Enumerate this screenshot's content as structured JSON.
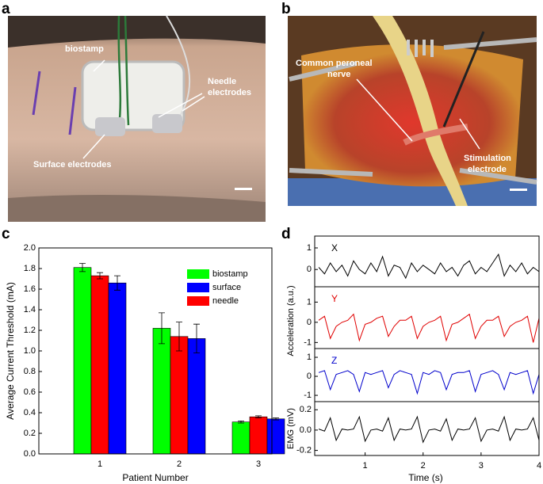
{
  "panel_labels": [
    "a",
    "b",
    "c",
    "d"
  ],
  "photo_a": {
    "labels": {
      "biostamp": "biostamp",
      "needle": [
        "Needle",
        "electrodes"
      ],
      "surface": "Surface electrodes"
    }
  },
  "photo_b": {
    "labels": {
      "nerve": [
        "Common peroneal",
        "nerve"
      ],
      "stim": [
        "Stimulation",
        "electrode"
      ]
    }
  },
  "chart_data": [
    {
      "type": "bar",
      "categories": [
        "1",
        "2",
        "3"
      ],
      "xlabel": "Patient  Number",
      "ylabel": "Average Current Threshold  (mA)",
      "ylim": [
        0,
        2.0
      ],
      "yticks": [
        {
          "value": 0,
          "label": "0.0"
        },
        0.2,
        0.4,
        0.6,
        0.8,
        {
          "value": 1,
          "label": "1.0"
        },
        1.2,
        1.4,
        1.6,
        1.8,
        {
          "value": 2,
          "label": "2.0"
        }
      ],
      "series": [
        {
          "name": "biostamp",
          "color": "#00ff00",
          "values": [
            1.81,
            1.22,
            0.31
          ],
          "errors": [
            0.04,
            0.15,
            0.01
          ]
        },
        {
          "name": "surface",
          "color": "#0000ff",
          "values": [
            1.66,
            1.12,
            0.34
          ],
          "errors": [
            0.07,
            0.14,
            0.01
          ]
        },
        {
          "name": "needle",
          "color": "#ff0000",
          "values": [
            1.73,
            1.14,
            0.36
          ],
          "errors": [
            0.03,
            0.14,
            0.01
          ]
        }
      ]
    },
    {
      "type": "line",
      "xlabel": "Time (s)",
      "ylabels": [
        "Acceleration (a.u.)",
        "EMG (mV)"
      ],
      "xlim": [
        0.13,
        4.0
      ],
      "xticks": [
        1,
        2,
        3,
        4
      ],
      "x": [
        0.2,
        0.3,
        0.4,
        0.5,
        0.6,
        0.7,
        0.8,
        0.9,
        1.0,
        1.1,
        1.2,
        1.3,
        1.4,
        1.5,
        1.6,
        1.7,
        1.8,
        1.9,
        2.0,
        2.1,
        2.2,
        2.3,
        2.4,
        2.5,
        2.6,
        2.7,
        2.8,
        2.9,
        3.0,
        3.1,
        3.2,
        3.3,
        3.4,
        3.5,
        3.6,
        3.7,
        3.8,
        3.9,
        4.0
      ],
      "series": [
        {
          "name": "X",
          "color": "#000000",
          "ylim": [
            -0.8,
            1.55
          ],
          "yticks": [
            0,
            1
          ],
          "values": [
            0.1,
            -0.2,
            0.3,
            -0.1,
            0.2,
            -0.3,
            0.4,
            0,
            -0.2,
            0.3,
            -0.1,
            0.6,
            -0.3,
            0.2,
            0.1,
            -0.4,
            0.3,
            -0.1,
            0.2,
            0,
            -0.2,
            0.3,
            -0.1,
            0.1,
            -0.3,
            0.2,
            0.4,
            -0.2,
            0.1,
            -0.1,
            0.3,
            0.7,
            -0.3,
            0.2,
            -0.1,
            0.3,
            -0.2,
            0.1,
            -0.1
          ]
        },
        {
          "name": "Y",
          "color": "#e00000",
          "ylim": [
            -1.3,
            1.76
          ],
          "yticks": [
            -1,
            0,
            1
          ],
          "values": [
            0.1,
            0.3,
            -0.8,
            -0.2,
            0,
            0.1,
            0.4,
            -0.9,
            -0.1,
            0,
            0.2,
            0.3,
            -0.7,
            -0.2,
            0.1,
            0.1,
            0.3,
            -0.8,
            -0.2,
            0,
            0.1,
            0.3,
            -0.9,
            -0.1,
            0,
            0.2,
            0.4,
            -0.8,
            -0.2,
            0.1,
            0.1,
            0.3,
            -0.7,
            -0.2,
            0,
            0.1,
            0.3,
            -1.0,
            0.2
          ]
        },
        {
          "name": "Z",
          "color": "#0000cc",
          "ylim": [
            -1.33,
            1.46
          ],
          "yticks": [
            -1,
            0,
            1
          ],
          "values": [
            0.2,
            0.3,
            -0.7,
            0.1,
            0.2,
            0.3,
            0.1,
            -0.8,
            0.2,
            0.1,
            0.2,
            0.3,
            -0.6,
            0.1,
            0.3,
            0.2,
            0.1,
            -0.9,
            0.2,
            0.1,
            0.3,
            0.2,
            -0.7,
            0.1,
            0.2,
            0.2,
            0.3,
            -0.8,
            0.1,
            0.2,
            0.3,
            0.1,
            -0.7,
            0.2,
            0.1,
            0.2,
            0.3,
            -0.9,
            0.1
          ]
        },
        {
          "color": "#000000",
          "ylim": [
            -0.25,
            0.28
          ],
          "yticks": [
            -0.2,
            {
              "value": 0,
              "label": "0.0"
            },
            0.2
          ],
          "values": [
            0.01,
            -0.01,
            0.12,
            -0.1,
            0.01,
            0,
            0.01,
            0.13,
            -0.11,
            0,
            0.01,
            -0.01,
            0.12,
            -0.1,
            0.01,
            0,
            0.01,
            0.13,
            -0.12,
            0,
            0.01,
            -0.01,
            0.11,
            -0.1,
            0.01,
            0,
            0.01,
            0.12,
            -0.11,
            0,
            0.01,
            -0.01,
            0.13,
            -0.1,
            0.01,
            0,
            0.01,
            0.12,
            -0.1
          ]
        }
      ]
    }
  ]
}
